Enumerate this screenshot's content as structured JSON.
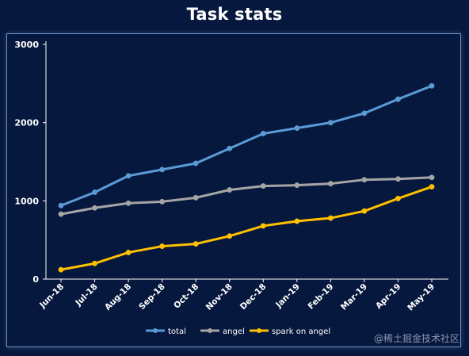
{
  "watermark": "@稀土掘金技术社区",
  "chart_data": {
    "type": "line",
    "title": "Task stats",
    "xlabel": "",
    "ylabel": "",
    "ylim": [
      0,
      3000
    ],
    "yticks": [
      0,
      1000,
      2000,
      3000
    ],
    "categories": [
      "Jun-18",
      "Jul-18",
      "Aug-18",
      "Sep-18",
      "Oct-18",
      "Nov-18",
      "Dec-18",
      "Jan-19",
      "Feb-19",
      "Mar-19",
      "Apr-19",
      "May-19"
    ],
    "legend_position": "bottom",
    "grid": false,
    "series": [
      {
        "name": "total",
        "color": "#5b9bd5",
        "values": [
          940,
          1110,
          1320,
          1400,
          1480,
          1670,
          1860,
          1930,
          2000,
          2120,
          2300,
          2470
        ]
      },
      {
        "name": "angel",
        "color": "#a5a5a5",
        "values": [
          830,
          910,
          970,
          990,
          1040,
          1140,
          1190,
          1200,
          1220,
          1270,
          1280,
          1300
        ]
      },
      {
        "name": "spark on angel",
        "color": "#ffc000",
        "values": [
          120,
          200,
          340,
          420,
          450,
          550,
          680,
          740,
          780,
          870,
          1030,
          1180
        ]
      }
    ]
  }
}
